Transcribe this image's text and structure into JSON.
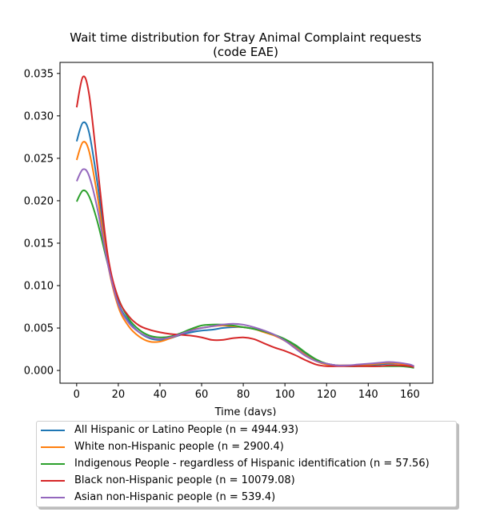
{
  "chart_data": {
    "type": "line",
    "title_line1": "Wait time distribution  for Stray Animal Complaint  requests",
    "title_line2": "(code EAE)",
    "xlabel": "Time (days)",
    "ylabel": "",
    "xlim": [
      -8,
      171
    ],
    "ylim": [
      -0.0015,
      0.0363
    ],
    "xticks": [
      0,
      20,
      40,
      60,
      80,
      100,
      120,
      140,
      160
    ],
    "yticks": [
      0.0,
      0.005,
      0.01,
      0.015,
      0.02,
      0.025,
      0.03,
      0.035
    ],
    "ytick_labels": [
      "0.000",
      "0.005",
      "0.010",
      "0.015",
      "0.020",
      "0.025",
      "0.030",
      "0.035"
    ],
    "grid": false,
    "legend_position": "below",
    "series": [
      {
        "name": "All Hispanic or Latino People (n = 4944.93)",
        "color": "#1f77b4",
        "points": [
          [
            0,
            0.027
          ],
          [
            3,
            0.0292
          ],
          [
            6,
            0.028
          ],
          [
            10,
            0.022
          ],
          [
            15,
            0.013
          ],
          [
            20,
            0.008
          ],
          [
            25,
            0.0058
          ],
          [
            30,
            0.0045
          ],
          [
            35,
            0.0038
          ],
          [
            40,
            0.0036
          ],
          [
            45,
            0.0038
          ],
          [
            50,
            0.0042
          ],
          [
            55,
            0.0045
          ],
          [
            60,
            0.0047
          ],
          [
            65,
            0.0048
          ],
          [
            70,
            0.005
          ],
          [
            75,
            0.0051
          ],
          [
            80,
            0.0051
          ],
          [
            85,
            0.0049
          ],
          [
            90,
            0.0046
          ],
          [
            95,
            0.0042
          ],
          [
            100,
            0.0036
          ],
          [
            105,
            0.0028
          ],
          [
            110,
            0.0019
          ],
          [
            115,
            0.0012
          ],
          [
            120,
            0.0008
          ],
          [
            125,
            0.0006
          ],
          [
            130,
            0.0006
          ],
          [
            135,
            0.0006
          ],
          [
            140,
            0.0006
          ],
          [
            145,
            0.0007
          ],
          [
            150,
            0.0008
          ],
          [
            155,
            0.0008
          ],
          [
            160,
            0.0006
          ],
          [
            162,
            0.0005
          ]
        ]
      },
      {
        "name": "White non-Hispanic people (n = 2900.4)",
        "color": "#ff7f0e",
        "points": [
          [
            0,
            0.0248
          ],
          [
            3,
            0.0269
          ],
          [
            6,
            0.0258
          ],
          [
            10,
            0.0205
          ],
          [
            15,
            0.0125
          ],
          [
            20,
            0.0075
          ],
          [
            25,
            0.0052
          ],
          [
            30,
            0.004
          ],
          [
            35,
            0.0034
          ],
          [
            40,
            0.0034
          ],
          [
            45,
            0.0038
          ],
          [
            50,
            0.0043
          ],
          [
            55,
            0.0048
          ],
          [
            60,
            0.005
          ],
          [
            65,
            0.0052
          ],
          [
            70,
            0.0053
          ],
          [
            75,
            0.0052
          ],
          [
            80,
            0.0051
          ],
          [
            85,
            0.0049
          ],
          [
            90,
            0.0045
          ],
          [
            95,
            0.0041
          ],
          [
            100,
            0.0035
          ],
          [
            105,
            0.0027
          ],
          [
            110,
            0.0018
          ],
          [
            115,
            0.0011
          ],
          [
            120,
            0.0007
          ],
          [
            125,
            0.0006
          ],
          [
            130,
            0.0006
          ],
          [
            135,
            0.0006
          ],
          [
            140,
            0.0007
          ],
          [
            145,
            0.0008
          ],
          [
            150,
            0.0009
          ],
          [
            155,
            0.0008
          ],
          [
            160,
            0.0006
          ],
          [
            162,
            0.0005
          ]
        ]
      },
      {
        "name": "Indigenous People - regardless of Hispanic identification (n = 57.56)",
        "color": "#2ca02c",
        "points": [
          [
            0,
            0.0199
          ],
          [
            3,
            0.0212
          ],
          [
            6,
            0.0205
          ],
          [
            10,
            0.0175
          ],
          [
            15,
            0.0125
          ],
          [
            20,
            0.0085
          ],
          [
            25,
            0.0061
          ],
          [
            30,
            0.0048
          ],
          [
            35,
            0.0041
          ],
          [
            40,
            0.0039
          ],
          [
            45,
            0.004
          ],
          [
            50,
            0.0044
          ],
          [
            55,
            0.0049
          ],
          [
            60,
            0.0053
          ],
          [
            65,
            0.0054
          ],
          [
            70,
            0.0054
          ],
          [
            75,
            0.0053
          ],
          [
            80,
            0.0051
          ],
          [
            85,
            0.0049
          ],
          [
            90,
            0.0046
          ],
          [
            95,
            0.0042
          ],
          [
            100,
            0.0037
          ],
          [
            105,
            0.003
          ],
          [
            110,
            0.0021
          ],
          [
            115,
            0.0013
          ],
          [
            120,
            0.0008
          ],
          [
            125,
            0.0006
          ],
          [
            130,
            0.0005
          ],
          [
            135,
            0.0005
          ],
          [
            140,
            0.0005
          ],
          [
            145,
            0.0005
          ],
          [
            150,
            0.0005
          ],
          [
            155,
            0.0005
          ],
          [
            160,
            0.0004
          ],
          [
            162,
            0.0003
          ]
        ]
      },
      {
        "name": "Black non-Hispanic people (n = 10079.08)",
        "color": "#d62728",
        "points": [
          [
            0,
            0.031
          ],
          [
            3,
            0.0346
          ],
          [
            6,
            0.0325
          ],
          [
            10,
            0.024
          ],
          [
            15,
            0.0135
          ],
          [
            20,
            0.0085
          ],
          [
            25,
            0.0064
          ],
          [
            30,
            0.0053
          ],
          [
            35,
            0.0048
          ],
          [
            40,
            0.0045
          ],
          [
            45,
            0.0043
          ],
          [
            50,
            0.0042
          ],
          [
            55,
            0.0041
          ],
          [
            60,
            0.0039
          ],
          [
            65,
            0.0036
          ],
          [
            70,
            0.0036
          ],
          [
            75,
            0.0038
          ],
          [
            80,
            0.0039
          ],
          [
            85,
            0.0037
          ],
          [
            90,
            0.0032
          ],
          [
            95,
            0.0027
          ],
          [
            100,
            0.0023
          ],
          [
            105,
            0.0018
          ],
          [
            110,
            0.0012
          ],
          [
            115,
            0.0007
          ],
          [
            120,
            0.0005
          ],
          [
            125,
            0.0005
          ],
          [
            130,
            0.0005
          ],
          [
            135,
            0.0005
          ],
          [
            140,
            0.0005
          ],
          [
            145,
            0.0005
          ],
          [
            150,
            0.0006
          ],
          [
            155,
            0.0006
          ],
          [
            160,
            0.0005
          ],
          [
            162,
            0.0004
          ]
        ]
      },
      {
        "name": "Asian non-Hispanic people (n = 539.4)",
        "color": "#9467bd",
        "points": [
          [
            0,
            0.0223
          ],
          [
            3,
            0.0237
          ],
          [
            6,
            0.0229
          ],
          [
            10,
            0.019
          ],
          [
            15,
            0.0125
          ],
          [
            20,
            0.0078
          ],
          [
            25,
            0.0056
          ],
          [
            30,
            0.0045
          ],
          [
            35,
            0.0039
          ],
          [
            40,
            0.0037
          ],
          [
            45,
            0.0039
          ],
          [
            50,
            0.0043
          ],
          [
            55,
            0.0047
          ],
          [
            60,
            0.005
          ],
          [
            65,
            0.0052
          ],
          [
            70,
            0.0054
          ],
          [
            75,
            0.0055
          ],
          [
            80,
            0.0054
          ],
          [
            85,
            0.0051
          ],
          [
            90,
            0.0047
          ],
          [
            95,
            0.0042
          ],
          [
            100,
            0.0035
          ],
          [
            105,
            0.0026
          ],
          [
            110,
            0.0017
          ],
          [
            115,
            0.0011
          ],
          [
            120,
            0.0008
          ],
          [
            125,
            0.0006
          ],
          [
            130,
            0.0006
          ],
          [
            135,
            0.0007
          ],
          [
            140,
            0.0008
          ],
          [
            145,
            0.0009
          ],
          [
            150,
            0.001
          ],
          [
            155,
            0.0009
          ],
          [
            160,
            0.0007
          ],
          [
            162,
            0.0005
          ]
        ]
      }
    ]
  }
}
